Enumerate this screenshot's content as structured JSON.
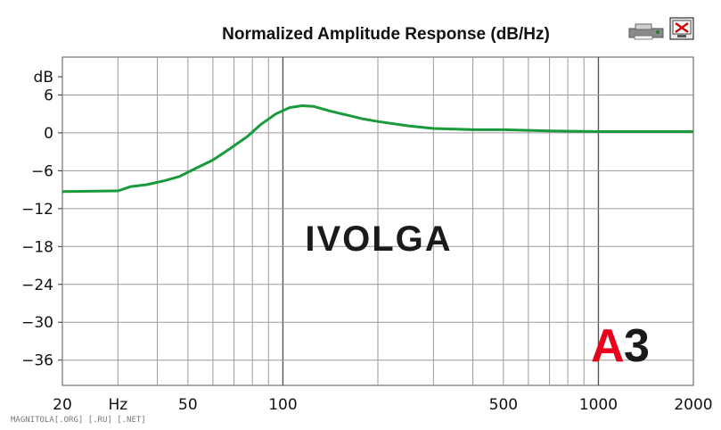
{
  "chart_data": {
    "type": "line",
    "title": "Normalized Amplitude Response (dB/Hz)",
    "xscale": "log",
    "xlim": [
      20,
      2000
    ],
    "ylim": [
      -40,
      12
    ],
    "x_ticks": [
      20,
      50,
      100,
      500,
      1000,
      2000
    ],
    "x_unit_label": "Hz",
    "y_ticks": [
      6,
      0,
      -6,
      -12,
      -18,
      -24,
      -30,
      -36
    ],
    "y_unit_label": "dB",
    "grid": true,
    "series": [
      {
        "color": "#1a9a3a",
        "x": [
          20,
          30,
          33,
          37,
          42,
          47,
          53,
          60,
          68,
          77,
          85,
          95,
          105,
          115,
          125,
          140,
          160,
          180,
          200,
          250,
          300,
          400,
          500,
          600,
          700,
          1000,
          1500,
          2000
        ],
        "y": [
          -9.3,
          -9.2,
          -8.5,
          -8.2,
          -7.6,
          -6.9,
          -5.6,
          -4.3,
          -2.5,
          -0.6,
          1.3,
          3.0,
          4.0,
          4.3,
          4.2,
          3.5,
          2.8,
          2.2,
          1.8,
          1.1,
          0.7,
          0.5,
          0.5,
          0.4,
          0.3,
          0.2,
          0.2,
          0.2
        ]
      }
    ]
  },
  "watermark": "IVOLGA",
  "logo": {
    "letter": "A",
    "digit": "3",
    "accent": "#e8001c"
  },
  "source": "MAGNITOLA[.ORG] [.RU] [.NET]",
  "icons": [
    "printer-icon",
    "close-window-icon"
  ]
}
